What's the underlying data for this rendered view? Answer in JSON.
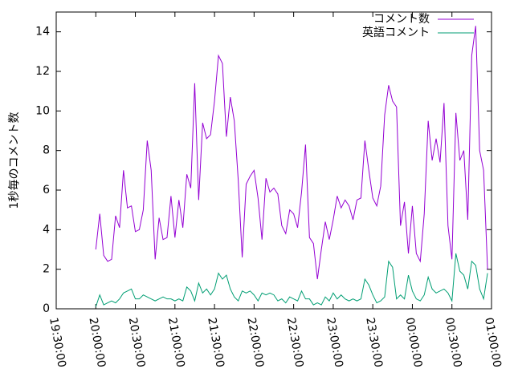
{
  "chart_data": {
    "type": "line",
    "ylabel": "1秒毎のコメント数",
    "x": [
      "20:00:00",
      "20:03:00",
      "20:06:00",
      "20:09:00",
      "20:12:00",
      "20:15:00",
      "20:18:00",
      "20:21:00",
      "20:24:00",
      "20:27:00",
      "20:30:00",
      "20:33:00",
      "20:36:00",
      "20:39:00",
      "20:42:00",
      "20:45:00",
      "20:48:00",
      "20:51:00",
      "20:54:00",
      "20:57:00",
      "21:00:00",
      "21:03:00",
      "21:06:00",
      "21:09:00",
      "21:12:00",
      "21:15:00",
      "21:18:00",
      "21:21:00",
      "21:24:00",
      "21:27:00",
      "21:30:00",
      "21:33:00",
      "21:36:00",
      "21:39:00",
      "21:42:00",
      "21:45:00",
      "21:48:00",
      "21:51:00",
      "21:54:00",
      "21:57:00",
      "22:00:00",
      "22:03:00",
      "22:06:00",
      "22:09:00",
      "22:12:00",
      "22:15:00",
      "22:18:00",
      "22:21:00",
      "22:24:00",
      "22:27:00",
      "22:30:00",
      "22:33:00",
      "22:36:00",
      "22:39:00",
      "22:42:00",
      "22:45:00",
      "22:48:00",
      "22:51:00",
      "22:54:00",
      "22:57:00",
      "23:00:00",
      "23:03:00",
      "23:06:00",
      "23:09:00",
      "23:12:00",
      "23:15:00",
      "23:18:00",
      "23:21:00",
      "23:24:00",
      "23:27:00",
      "23:30:00",
      "23:33:00",
      "23:36:00",
      "23:39:00",
      "23:42:00",
      "23:45:00",
      "23:48:00",
      "23:51:00",
      "23:54:00",
      "23:57:00",
      "00:00:00",
      "00:03:00",
      "00:06:00",
      "00:09:00",
      "00:12:00",
      "00:15:00",
      "00:18:00",
      "00:21:00",
      "00:24:00",
      "00:27:00",
      "00:30:00",
      "00:33:00",
      "00:36:00",
      "00:39:00",
      "00:42:00",
      "00:45:00",
      "00:48:00",
      "00:51:00",
      "00:54:00",
      "00:57:00"
    ],
    "series": [
      {
        "name": "コメント数",
        "color": "#9400d3",
        "values": [
          3.0,
          4.8,
          2.7,
          2.4,
          2.5,
          4.7,
          4.1,
          7.0,
          5.1,
          5.2,
          3.9,
          4.0,
          5.0,
          8.5,
          7.0,
          2.5,
          4.6,
          3.5,
          3.6,
          5.7,
          3.6,
          5.5,
          4.1,
          6.8,
          6.1,
          11.4,
          5.5,
          9.4,
          8.6,
          8.8,
          10.5,
          12.8,
          12.4,
          8.7,
          10.7,
          9.5,
          6.5,
          2.6,
          6.3,
          6.7,
          7.0,
          5.6,
          3.5,
          6.6,
          5.9,
          6.1,
          5.8,
          4.2,
          3.8,
          5.0,
          4.8,
          4.1,
          5.9,
          8.3,
          3.6,
          3.3,
          1.5,
          3.0,
          4.4,
          3.5,
          4.5,
          5.7,
          5.1,
          5.5,
          5.2,
          4.5,
          5.5,
          5.6,
          8.5,
          7.0,
          5.6,
          5.2,
          6.2,
          9.8,
          11.3,
          10.5,
          10.2,
          4.2,
          5.4,
          2.8,
          5.2,
          2.8,
          2.4,
          4.8,
          9.5,
          7.5,
          8.6,
          7.4,
          10.4,
          4.2,
          2.5,
          9.9,
          7.5,
          8.0,
          4.5,
          12.8,
          14.3,
          8.0,
          7.0,
          2.0
        ]
      },
      {
        "name": "英語コメント",
        "color": "#009e73",
        "values": [
          0.1,
          0.7,
          0.2,
          0.3,
          0.4,
          0.3,
          0.5,
          0.8,
          0.9,
          1.0,
          0.5,
          0.5,
          0.7,
          0.6,
          0.5,
          0.4,
          0.5,
          0.6,
          0.5,
          0.5,
          0.4,
          0.5,
          0.4,
          1.1,
          0.9,
          0.4,
          1.3,
          0.8,
          1.0,
          0.7,
          1.0,
          1.8,
          1.5,
          1.7,
          1.0,
          0.6,
          0.4,
          0.9,
          0.8,
          0.9,
          0.7,
          0.4,
          0.8,
          0.7,
          0.8,
          0.7,
          0.4,
          0.5,
          0.3,
          0.6,
          0.5,
          0.4,
          0.9,
          0.5,
          0.5,
          0.2,
          0.3,
          0.2,
          0.6,
          0.4,
          0.8,
          0.5,
          0.7,
          0.5,
          0.4,
          0.5,
          0.4,
          0.5,
          1.5,
          1.2,
          0.7,
          0.3,
          0.4,
          0.6,
          2.4,
          2.1,
          0.5,
          0.7,
          0.5,
          1.7,
          0.9,
          0.5,
          0.4,
          0.7,
          1.6,
          1.0,
          0.8,
          0.9,
          1.0,
          0.8,
          0.4,
          2.8,
          1.9,
          1.7,
          1.0,
          2.4,
          2.2,
          1.0,
          0.5,
          1.8
        ]
      }
    ],
    "xlim": [
      "19:30:00",
      "01:00:00"
    ],
    "xticks": [
      "19:30:00",
      "20:00:00",
      "20:30:00",
      "21:00:00",
      "21:30:00",
      "22:00:00",
      "22:30:00",
      "23:00:00",
      "23:30:00",
      "00:00:00",
      "00:30:00",
      "01:00:00"
    ],
    "ylim": [
      0,
      15
    ],
    "yticks": [
      0,
      2,
      4,
      6,
      8,
      10,
      12,
      14
    ],
    "legend": "upper right"
  }
}
